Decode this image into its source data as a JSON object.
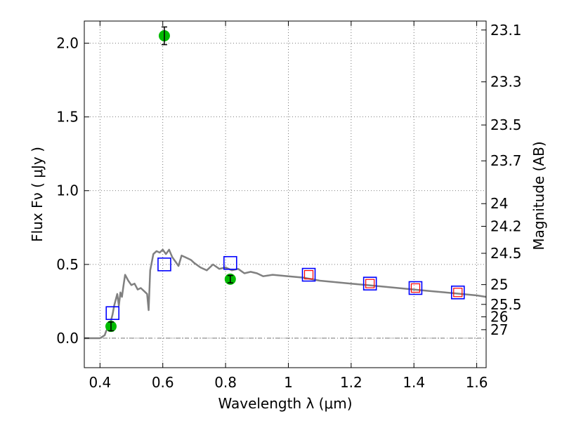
{
  "chart_data": {
    "type": "scatter",
    "xlabel": "Wavelength  λ (μm)",
    "ylabel_left": "Flux  Fν ( μJy )",
    "ylabel_right": "Magnitude (AB)",
    "xlim": [
      0.35,
      1.63
    ],
    "ylim": [
      -0.2,
      2.15
    ],
    "grid": true,
    "colors": {
      "template": "#808080",
      "observed": "#00bb00",
      "model_box": "#0000ff",
      "model_box_inner": "#ff0000",
      "errorbar": "#000000"
    },
    "x_ticks": [
      {
        "value": 0.4,
        "label": "0.4"
      },
      {
        "value": 0.6,
        "label": "0.6"
      },
      {
        "value": 0.8,
        "label": "0.8"
      },
      {
        "value": 1.0,
        "label": "1"
      },
      {
        "value": 1.2,
        "label": "1.2"
      },
      {
        "value": 1.4,
        "label": "1.4"
      },
      {
        "value": 1.6,
        "label": "1.6"
      }
    ],
    "y_ticks": [
      {
        "value": 0.0,
        "label": "0.0"
      },
      {
        "value": 0.5,
        "label": "0.5"
      },
      {
        "value": 1.0,
        "label": "1.0"
      },
      {
        "value": 1.5,
        "label": "1.5"
      },
      {
        "value": 2.0,
        "label": "2.0"
      }
    ],
    "right_ticks": [
      {
        "value": 23.1,
        "label": "23.1"
      },
      {
        "value": 23.3,
        "label": "23.3"
      },
      {
        "value": 23.5,
        "label": "23.5"
      },
      {
        "value": 23.7,
        "label": "23.7"
      },
      {
        "value": 24.0,
        "label": "24"
      },
      {
        "value": 24.2,
        "label": "24.2"
      },
      {
        "value": 24.5,
        "label": "24.5"
      },
      {
        "value": 25.0,
        "label": "25"
      },
      {
        "value": 25.5,
        "label": "25.5"
      },
      {
        "value": 26.0,
        "label": "26"
      },
      {
        "value": 27.0,
        "label": "27"
      }
    ],
    "series": [
      {
        "kind": "template",
        "x": [
          0.35,
          0.4,
          0.415,
          0.42,
          0.43,
          0.435,
          0.44,
          0.445,
          0.45,
          0.455,
          0.46,
          0.465,
          0.47,
          0.475,
          0.48,
          0.49,
          0.5,
          0.51,
          0.52,
          0.53,
          0.54,
          0.55,
          0.555,
          0.56,
          0.57,
          0.58,
          0.59,
          0.6,
          0.61,
          0.62,
          0.63,
          0.64,
          0.65,
          0.66,
          0.67,
          0.68,
          0.69,
          0.7,
          0.72,
          0.74,
          0.76,
          0.78,
          0.8,
          0.82,
          0.84,
          0.86,
          0.88,
          0.9,
          0.92,
          0.95,
          1.0,
          1.05,
          1.1,
          1.15,
          1.2,
          1.25,
          1.3,
          1.35,
          1.4,
          1.45,
          1.5,
          1.55,
          1.6,
          1.63
        ],
        "y": [
          0.0,
          0.0,
          0.02,
          0.05,
          0.08,
          0.12,
          0.16,
          0.22,
          0.26,
          0.3,
          0.22,
          0.31,
          0.28,
          0.36,
          0.43,
          0.39,
          0.36,
          0.37,
          0.33,
          0.34,
          0.32,
          0.3,
          0.19,
          0.46,
          0.57,
          0.59,
          0.58,
          0.6,
          0.57,
          0.6,
          0.55,
          0.52,
          0.49,
          0.56,
          0.55,
          0.54,
          0.53,
          0.51,
          0.48,
          0.46,
          0.5,
          0.47,
          0.48,
          0.46,
          0.47,
          0.44,
          0.45,
          0.44,
          0.42,
          0.43,
          0.42,
          0.41,
          0.39,
          0.38,
          0.37,
          0.36,
          0.35,
          0.34,
          0.33,
          0.32,
          0.31,
          0.3,
          0.29,
          0.28
        ]
      },
      {
        "kind": "observed",
        "points": [
          {
            "x": 0.435,
            "y": 0.08,
            "err": 0.03
          },
          {
            "x": 0.605,
            "y": 2.05,
            "err": 0.06
          },
          {
            "x": 0.815,
            "y": 0.4,
            "err": 0.025
          }
        ]
      },
      {
        "kind": "model",
        "points": [
          {
            "x": 0.44,
            "y": 0.17
          },
          {
            "x": 0.605,
            "y": 0.5
          },
          {
            "x": 0.815,
            "y": 0.51
          },
          {
            "x": 1.065,
            "y": 0.43
          },
          {
            "x": 1.26,
            "y": 0.37
          },
          {
            "x": 1.405,
            "y": 0.34
          },
          {
            "x": 1.54,
            "y": 0.31
          }
        ]
      },
      {
        "kind": "model_inner",
        "points": [
          {
            "x": 1.065,
            "y": 0.43
          },
          {
            "x": 1.26,
            "y": 0.37
          },
          {
            "x": 1.405,
            "y": 0.34
          },
          {
            "x": 1.54,
            "y": 0.31
          }
        ]
      }
    ]
  }
}
